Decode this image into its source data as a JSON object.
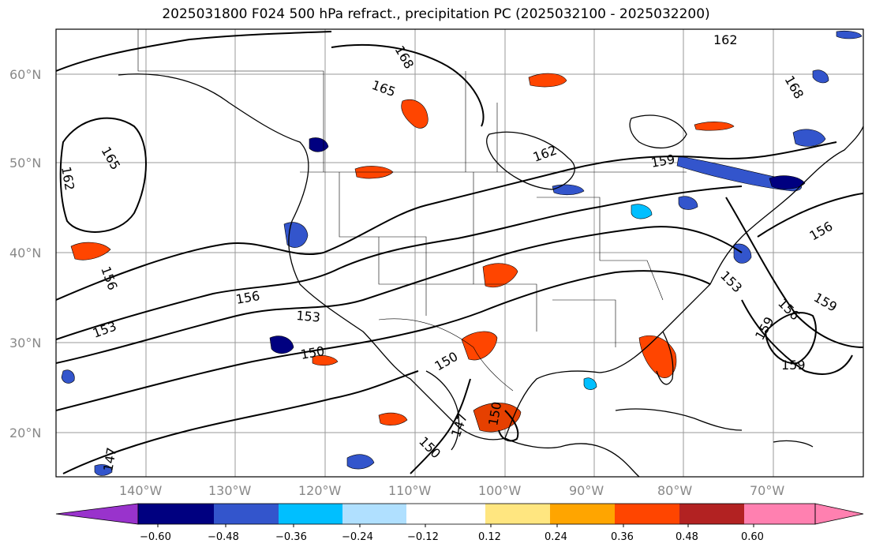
{
  "title": "2025031800 F024 500 hPa refract., precipitation PC (2025032100 - 2025032200)",
  "map": {
    "lat_labels": [
      "60°N",
      "50°N",
      "40°N",
      "30°N",
      "20°N"
    ],
    "lon_labels": [
      "140°W",
      "130°W",
      "120°W",
      "110°W",
      "100°W",
      "90°W",
      "80°W",
      "70°W"
    ],
    "contour_labels": [
      {
        "id": "c165a",
        "text": "165"
      },
      {
        "id": "c165b",
        "text": "165"
      },
      {
        "id": "c162a",
        "text": "162"
      },
      {
        "id": "c162b",
        "text": "162"
      },
      {
        "id": "c162c",
        "text": "162"
      },
      {
        "id": "c168a",
        "text": "168"
      },
      {
        "id": "c168b",
        "text": "168"
      },
      {
        "id": "c159a",
        "text": "159"
      },
      {
        "id": "c159b",
        "text": "159"
      },
      {
        "id": "c159c",
        "text": "159"
      },
      {
        "id": "c159d",
        "text": "159"
      },
      {
        "id": "c156a",
        "text": "156"
      },
      {
        "id": "c156b",
        "text": "156"
      },
      {
        "id": "c156c",
        "text": "156"
      },
      {
        "id": "c156d",
        "text": "156"
      },
      {
        "id": "c153a",
        "text": "153"
      },
      {
        "id": "c153b",
        "text": "153"
      },
      {
        "id": "c153c",
        "text": "153"
      },
      {
        "id": "c150a",
        "text": "150"
      },
      {
        "id": "c150b",
        "text": "150"
      },
      {
        "id": "c150c",
        "text": "150"
      },
      {
        "id": "c150d",
        "text": "150"
      },
      {
        "id": "c147a",
        "text": "147"
      },
      {
        "id": "c147b",
        "text": "147"
      }
    ]
  },
  "colorbar": {
    "ticks": [
      "−0.60",
      "−0.48",
      "−0.36",
      "−0.24",
      "−0.12",
      "0.12",
      "0.24",
      "0.36",
      "0.48",
      "0.60"
    ],
    "colors": [
      "#9933cc",
      "#000080",
      "#3355cc",
      "#00bfff",
      "#b0e0ff",
      "#ffffff",
      "#ffe680",
      "#ffa500",
      "#ff4500",
      "#b22222",
      "#ff80b0"
    ]
  }
}
